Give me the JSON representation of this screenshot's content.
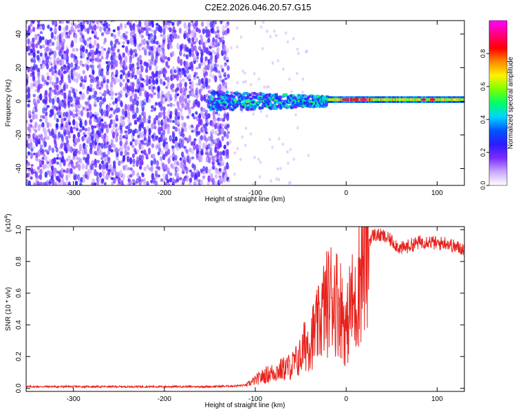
{
  "title": "C2E2.2026.046.20.57.G15",
  "chart_data": [
    {
      "type": "heatmap",
      "xlabel": "Height of straight line (km)",
      "ylabel": "Frequency (Hz)",
      "xlim": [
        -352,
        130
      ],
      "ylim": [
        -50,
        48
      ],
      "xticks": [
        -300,
        -200,
        -100,
        0,
        100
      ],
      "xtick_labels": [
        "-300",
        "-200",
        "-100",
        "0",
        "100"
      ],
      "yticks": [
        -40,
        -20,
        0,
        20,
        40
      ],
      "ytick_labels": [
        "-40",
        "-20",
        "0",
        "20",
        "40"
      ],
      "colorbar": {
        "label": "Normalized spectral amplitude",
        "range": [
          0,
          1
        ],
        "ticks": [
          0.0,
          0.2,
          0.4,
          0.6,
          0.8
        ],
        "tick_labels": [
          "0.0",
          "0.2",
          "0.4",
          "0.6",
          "0.8"
        ],
        "colors": [
          "#ffffff",
          "#c9a7ff",
          "#7a2bff",
          "#2a1cff",
          "#0055ff",
          "#00d4ff",
          "#00ff66",
          "#7dff00",
          "#fff200",
          "#ff8a00",
          "#ff0000",
          "#ff0080",
          "#ff00ff"
        ]
      },
      "regions": [
        {
          "x_range": [
            -352,
            -130
          ],
          "freq_range": [
            -50,
            48
          ],
          "level": 0.15
        },
        {
          "x_range": [
            -150,
            -20
          ],
          "freq_center": 0,
          "freq_halfwidth": 6,
          "level": 0.45
        },
        {
          "x_range": [
            -20,
            130
          ],
          "freq_center": 1,
          "freq_halfwidth": 2,
          "level": 0.8
        }
      ]
    },
    {
      "type": "line",
      "xlabel": "Height of straight line (km)",
      "ylabel": "SNR (10 * v/v)",
      "yscale_label": "(x10",
      "yscale_exp": "4",
      "yscale_close": ")",
      "xlim": [
        -352,
        130
      ],
      "ylim": [
        -0.02,
        1.02
      ],
      "xticks": [
        -300,
        -200,
        -100,
        0,
        100
      ],
      "xtick_labels": [
        "-300",
        "-200",
        "-100",
        "0",
        "100"
      ],
      "yticks": [
        0.0,
        0.2,
        0.4,
        0.6,
        0.8,
        1.0
      ],
      "ytick_labels": [
        "0.0",
        "0.2",
        "0.4",
        "0.6",
        "0.8",
        "1.0"
      ],
      "color": "#e8221c",
      "series": [
        {
          "name": "SNR",
          "x": [
            -352,
            -300,
            -250,
            -200,
            -150,
            -120,
            -110,
            -100,
            -90,
            -80,
            -70,
            -60,
            -50,
            -45,
            -40,
            -35,
            -30,
            -25,
            -20,
            -15,
            -10,
            -5,
            0,
            5,
            10,
            15,
            20,
            25,
            30,
            40,
            50,
            60,
            70,
            80,
            90,
            100,
            110,
            120,
            130
          ],
          "values": [
            0.01,
            0.01,
            0.01,
            0.01,
            0.01,
            0.015,
            0.02,
            0.05,
            0.08,
            0.1,
            0.12,
            0.14,
            0.2,
            0.28,
            0.3,
            0.35,
            0.4,
            0.5,
            0.55,
            0.6,
            0.55,
            0.5,
            0.35,
            0.55,
            0.5,
            0.75,
            0.85,
            0.93,
            0.97,
            0.96,
            0.93,
            0.88,
            0.9,
            0.92,
            0.93,
            0.91,
            0.92,
            0.89,
            0.88
          ]
        }
      ]
    }
  ]
}
